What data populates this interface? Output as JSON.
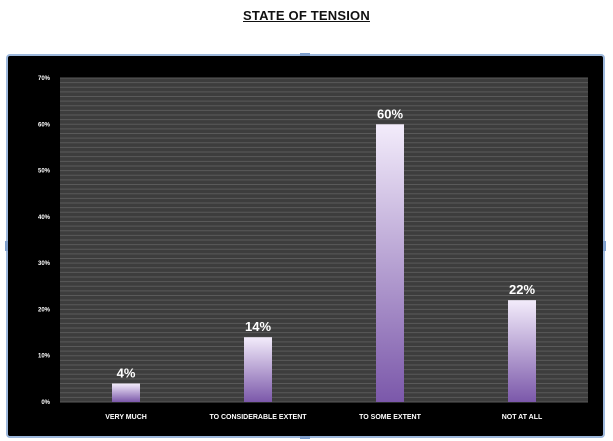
{
  "chart_data": {
    "type": "bar",
    "title": "STATE OF TENSION",
    "categories": [
      "VERY MUCH",
      "TO CONSIDERABLE EXTENT",
      "TO SOME EXTENT",
      "NOT AT ALL"
    ],
    "values": [
      4,
      14,
      60,
      22
    ],
    "data_labels": [
      "4%",
      "14%",
      "60%",
      "22%"
    ],
    "y_ticks": [
      "0%",
      "10%",
      "20%",
      "30%",
      "40%",
      "50%",
      "60%",
      "70%"
    ],
    "ylim": [
      0,
      70
    ],
    "grid": true,
    "legend": "none",
    "xlabel": "",
    "ylabel": ""
  },
  "colors": {
    "plot_background": "#3d3d3d",
    "chart_background": "#000000",
    "bar_top": "#f3ecfb",
    "bar_bottom": "#7b58aa",
    "gridline": "#5a5a5a"
  }
}
